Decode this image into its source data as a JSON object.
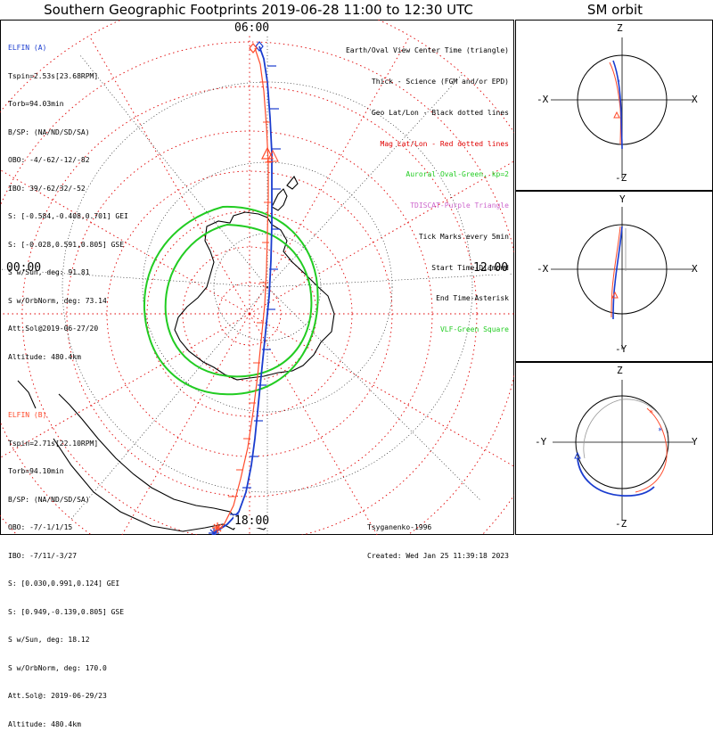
{
  "main_title": "Southern Geographic Footprints 2019-06-28 11:00 to 12:30 UTC",
  "sm_title": "SM orbit",
  "clock_labels": {
    "top": "06:00",
    "left": "00:00",
    "right": "12:00",
    "bottom": "18:00"
  },
  "elfin_a": {
    "lines": [
      "ELFIN (A)",
      "Tspin=2.53s[23.68RPM]",
      "Torb=94.03min",
      "B/SP: (NA/ND/SD/SA)",
      "OBO: -4/-62/-12/-82",
      "IBO: 39/-62/32/-52",
      "S: [-0.584,-0.408,0.701] GEI",
      "S: [-0.028,0.591,0.805] GSE",
      "S w/Sun, deg: 91.81",
      "S w/OrbNorm, deg: 73.14",
      "Att.Sol@2019-06-27/20",
      "Altitude: 480.4km"
    ],
    "color": "#1a3ccf"
  },
  "elfin_b": {
    "lines": [
      "ELFIN (B)",
      "Tspin=2.71s[22.10RPM]",
      "Torb=94.10min",
      "B/SP: (NA/ND/SD/SA)",
      "OBO: -7/-1/1/15",
      "IBO: -7/11/-3/27",
      "S: [0.030,0.991,0.124] GEI",
      "S: [0.949,-0.139,0.805] GSE",
      "S w/Sun, deg: 18.12",
      "S w/OrbNorm, deg: 170.0",
      "Att.Sol@: 2019-06-29/23",
      "Altitude: 480.4km"
    ],
    "color": "#ff4a2a"
  },
  "legend": [
    {
      "text": "Earth/Oval View Center Time (triangle)",
      "color": "#000000"
    },
    {
      "text": "Thick - Science (FGM and/or EPD)",
      "color": "#000000"
    },
    {
      "text": "Geo Lat/Lon - Black dotted lines",
      "color": "#000000"
    },
    {
      "text": "Mag Lat/Lon - Red dotted lines",
      "color": "#e00000"
    },
    {
      "text": "Auroral Oval-Green, kp=2",
      "color": "#22cc22"
    },
    {
      "text": "TDISCAT-Purple Triangle",
      "color": "#cc66cc"
    },
    {
      "text": "Tick Marks every 5min",
      "color": "#000000"
    },
    {
      "text": "Start Time-Diamond",
      "color": "#000000"
    },
    {
      "text": "End Time-Asterisk",
      "color": "#000000"
    },
    {
      "text": "VLF-Green Square",
      "color": "#22cc22"
    }
  ],
  "credit": [
    "Tsyganenko-1996",
    "Created: Wed Jan 25 11:39:18 2023"
  ],
  "sm_panels": [
    {
      "top": "Z",
      "bottom": "-Z",
      "left": "-X",
      "right": "X"
    },
    {
      "top": "Y",
      "bottom": "-Y",
      "left": "-X",
      "right": "X"
    },
    {
      "top": "Z",
      "bottom": "-Z",
      "left": "-Y",
      "right": "Y"
    }
  ],
  "colors": {
    "elfin_a": "#1a3ccf",
    "elfin_b": "#ff4a2a",
    "mag_grid": "#e00000",
    "oval": "#22cc22"
  }
}
